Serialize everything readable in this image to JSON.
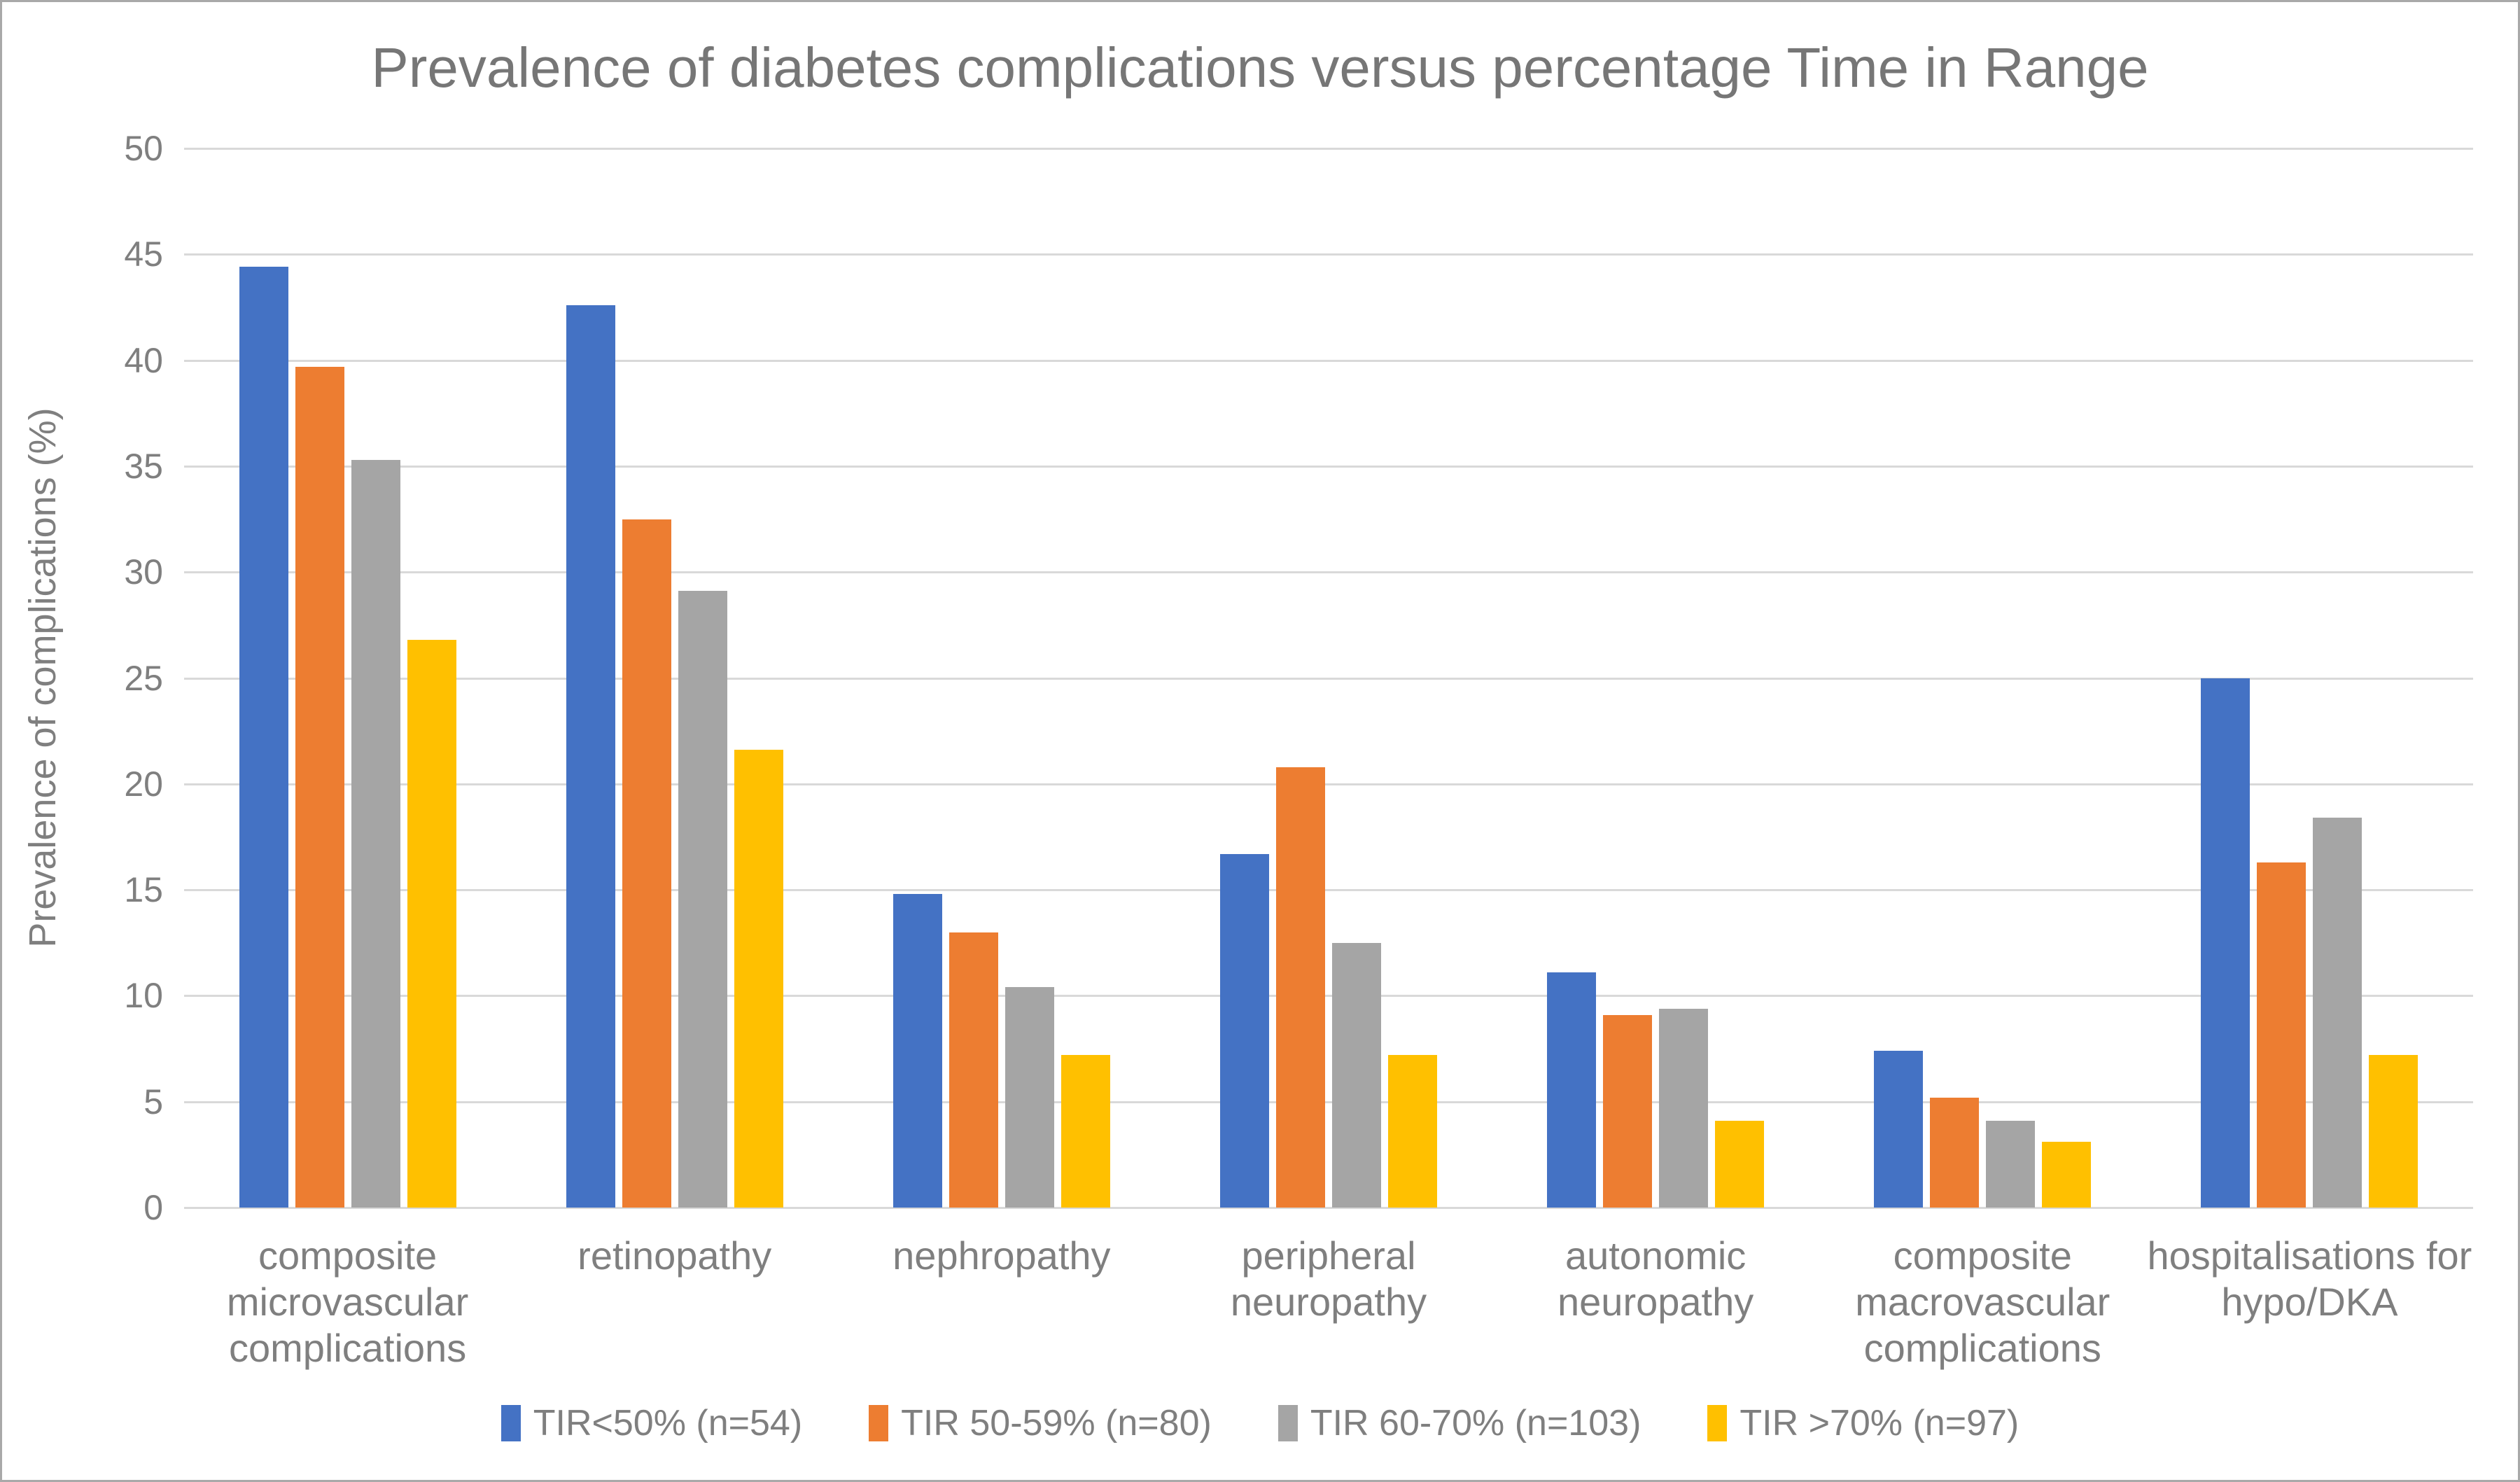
{
  "window": {
    "background": "#ffffff",
    "border_color": "#a9a9a9"
  },
  "chart_data": {
    "type": "bar",
    "title": "Prevalence of diabetes complications versus percentage Time in Range",
    "xlabel": "",
    "ylabel": "Prevalence of complications (%)",
    "ylim": [
      0,
      50
    ],
    "yticks": [
      50,
      45,
      40,
      35,
      30,
      25,
      20,
      15,
      10,
      5,
      0
    ],
    "grid": true,
    "legend_position": "bottom",
    "text_color": "#7f7f7f",
    "title_color": "#767676",
    "gridline_color": "#d9d9d9",
    "categories": [
      "composite microvascular complications",
      "retinopathy",
      "nephropathy",
      "peripheral neuropathy",
      "autonomic neuropathy",
      "composite macrovascular complications",
      "hospitalisations for hypo/DKA"
    ],
    "category_label_lines": [
      [
        "composite",
        "microvascular",
        "complications"
      ],
      [
        "retinopathy"
      ],
      [
        "nephropathy"
      ],
      [
        "peripheral",
        "neuropathy"
      ],
      [
        "autonomic",
        "neuropathy"
      ],
      [
        "composite",
        "macrovascular",
        "complications"
      ],
      [
        "hospitalisations for",
        "hypo/DKA"
      ]
    ],
    "series": [
      {
        "name": "TIR<50% (n=54)",
        "color": "#4472C4",
        "values": [
          44.4,
          42.6,
          14.8,
          16.7,
          11.1,
          7.4,
          25.0
        ]
      },
      {
        "name": "TIR 50-59% (n=80)",
        "color": "#ED7D31",
        "values": [
          39.7,
          32.5,
          13.0,
          20.8,
          9.1,
          5.2,
          16.3
        ]
      },
      {
        "name": "TIR 60-70% (n=103)",
        "color": "#A5A5A5",
        "values": [
          35.3,
          29.1,
          10.4,
          12.5,
          9.4,
          4.1,
          18.4
        ]
      },
      {
        "name": "TIR >70% (n=97)",
        "color": "#FFC000",
        "values": [
          26.8,
          21.6,
          7.2,
          7.2,
          4.1,
          3.1,
          7.2
        ]
      }
    ]
  }
}
